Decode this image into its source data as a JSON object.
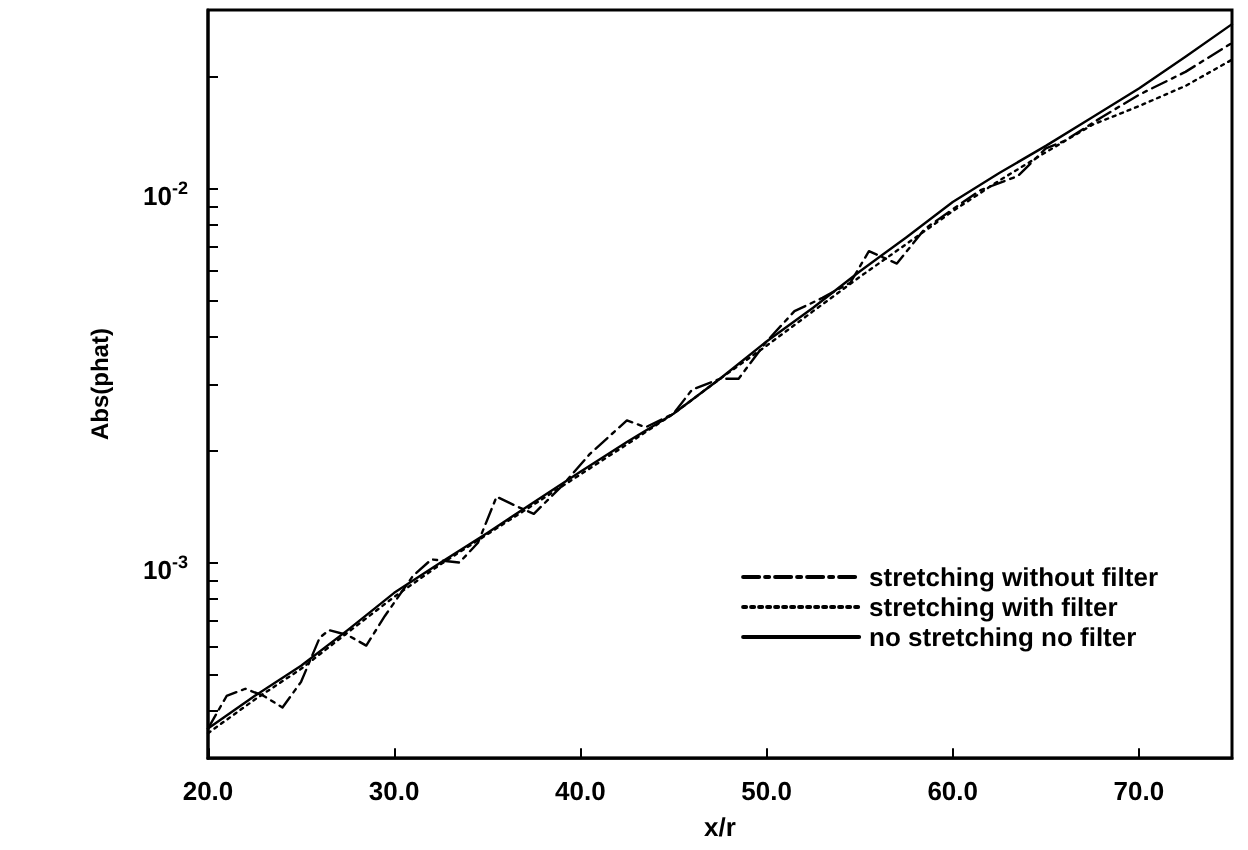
{
  "chart_data": {
    "type": "line",
    "xlabel": "x/r",
    "ylabel": "Abs(phat)",
    "xlim": [
      20,
      75
    ],
    "xticks": [
      {
        "value": 20,
        "label": "20.0"
      },
      {
        "value": 30,
        "label": "30.0"
      },
      {
        "value": 40,
        "label": "40.0"
      },
      {
        "value": 50,
        "label": "50.0"
      },
      {
        "value": 60,
        "label": "60.0"
      },
      {
        "value": 70,
        "label": "70.0"
      }
    ],
    "ylim": [
      0.0003,
      0.03
    ],
    "log": true,
    "yticks": [
      {
        "value": 0.0004,
        "label": null
      },
      {
        "value": 0.0005,
        "label": null
      },
      {
        "value": 0.0006,
        "label": null
      },
      {
        "value": 0.0007,
        "label": null
      },
      {
        "value": 0.0008,
        "label": null
      },
      {
        "value": 0.0009,
        "label": null
      },
      {
        "value": 0.001,
        "label": "10$^{-3}$"
      },
      {
        "value": 0.002,
        "label": null
      },
      {
        "value": 0.003,
        "label": null
      },
      {
        "value": 0.004,
        "label": null
      },
      {
        "value": 0.005,
        "label": null
      },
      {
        "value": 0.006,
        "label": null
      },
      {
        "value": 0.007,
        "label": null
      },
      {
        "value": 0.008,
        "label": null
      },
      {
        "value": 0.009,
        "label": null
      },
      {
        "value": 0.01,
        "label": "10$^{-2}$"
      },
      {
        "value": 0.02,
        "label": null
      }
    ],
    "grid": false,
    "legend": "bottom right",
    "marker": "none",
    "series": [
      {
        "name": "stretching without filter",
        "color": "#000000",
        "line_style": "dashdot",
        "x": [
          20,
          21,
          22,
          23,
          24,
          25,
          26,
          26.5,
          27.5,
          28.5,
          29.5,
          31,
          32,
          33.5,
          34.5,
          35.5,
          36.5,
          37.5,
          39,
          40.5,
          42.5,
          43.5,
          45,
          46,
          47.5,
          48.5,
          50,
          51.5,
          53,
          54.5,
          55.5,
          57,
          58.5,
          60,
          61.5,
          63.5,
          65,
          66,
          68,
          70,
          72.5,
          75
        ],
        "values": [
          0.00036,
          0.00044,
          0.00046,
          0.00044,
          0.00041,
          0.00048,
          0.00063,
          0.00066,
          0.00064,
          0.0006,
          0.00072,
          0.00092,
          0.00102,
          0.001,
          0.00113,
          0.0015,
          0.00142,
          0.00135,
          0.0016,
          0.00195,
          0.0024,
          0.0023,
          0.0025,
          0.0029,
          0.0031,
          0.0031,
          0.0039,
          0.0047,
          0.0051,
          0.0056,
          0.0068,
          0.0063,
          0.0078,
          0.0088,
          0.0099,
          0.0108,
          0.0128,
          0.0134,
          0.0155,
          0.0178,
          0.0205,
          0.0245
        ]
      },
      {
        "name": "stretching with filter",
        "color": "#000000",
        "line_style": "dotted",
        "x": [
          20,
          22.5,
          25,
          27.5,
          30,
          32.5,
          35,
          37.5,
          40,
          42.5,
          45,
          47.5,
          50,
          52.5,
          55,
          57.5,
          60,
          62.5,
          65,
          67.5,
          70,
          72.5,
          75
        ],
        "values": [
          0.00035,
          0.00043,
          0.00052,
          0.00065,
          0.00081,
          0.00099,
          0.00119,
          0.00143,
          0.00172,
          0.00207,
          0.0025,
          0.0031,
          0.0038,
          0.0047,
          0.0058,
          0.0071,
          0.0087,
          0.0105,
          0.0125,
          0.0148,
          0.0166,
          0.0188,
          0.0221
        ]
      },
      {
        "name": "no stretching no filter",
        "color": "#000000",
        "line_style": "solid",
        "x": [
          20,
          22.5,
          25,
          27.5,
          30,
          32.5,
          35,
          37.5,
          40,
          42.5,
          45,
          47.5,
          50,
          52.5,
          55,
          57.5,
          60,
          62.5,
          65,
          67.5,
          70,
          72.5,
          75
        ],
        "values": [
          0.00036,
          0.00044,
          0.00053,
          0.00066,
          0.00083,
          0.001,
          0.0012,
          0.00145,
          0.00175,
          0.0021,
          0.0025,
          0.0031,
          0.0039,
          0.0048,
          0.006,
          0.0074,
          0.0092,
          0.011,
          0.013,
          0.0155,
          0.0185,
          0.0225,
          0.0275
        ]
      }
    ]
  }
}
